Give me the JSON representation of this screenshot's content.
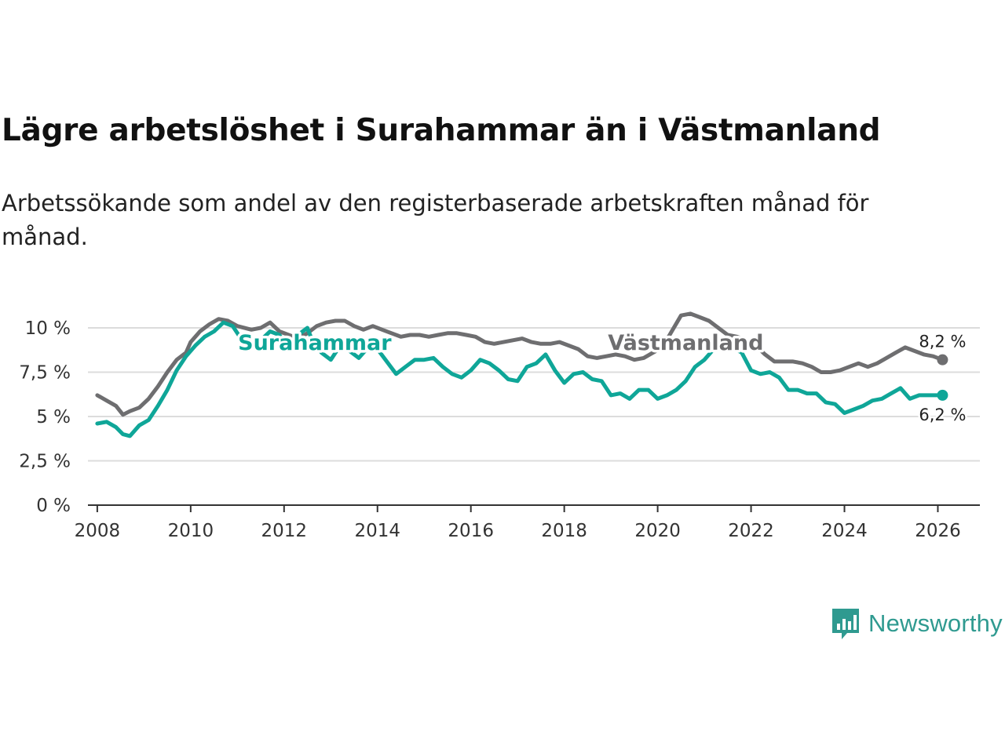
{
  "title": "Lägre arbetslöshet i Surahammar än i Västmanland",
  "subtitle": "Arbetssökande som andel av den registerbaserade arbetskraften månad för månad.",
  "brand": {
    "name": "Newsworthy",
    "icon": "newsworthy-logo-icon"
  },
  "colors": {
    "vastmanland": "#6e6e70",
    "surahammar": "#0fa698",
    "grid": "#dcdcdc",
    "axis": "#333333"
  },
  "chart_data": {
    "type": "line",
    "title": "Lägre arbetslöshet i Surahammar än i Västmanland",
    "xlabel": "",
    "ylabel": "",
    "xlim": [
      2007.8,
      2026.9
    ],
    "ylim": [
      0,
      10
    ],
    "x_ticks": [
      2008,
      2010,
      2012,
      2014,
      2016,
      2018,
      2020,
      2022,
      2024,
      2026
    ],
    "x_tick_labels": [
      "2008",
      "2010",
      "2012",
      "2014",
      "2016",
      "2018",
      "2020",
      "2022",
      "2024",
      "2026"
    ],
    "y_ticks": [
      0,
      2.5,
      5,
      7.5,
      10
    ],
    "y_tick_labels": [
      "0 %",
      "2,5 %",
      "5 %",
      "7,5 %",
      "10 %"
    ],
    "grid": true,
    "series": [
      {
        "name": "Västmanland",
        "label": "Västmanland",
        "end_label": "8,2 %",
        "color": "#6e6e70",
        "points": [
          [
            2008.0,
            6.2
          ],
          [
            2008.2,
            5.9
          ],
          [
            2008.4,
            5.6
          ],
          [
            2008.55,
            5.1
          ],
          [
            2008.7,
            5.3
          ],
          [
            2008.9,
            5.5
          ],
          [
            2009.1,
            6.0
          ],
          [
            2009.3,
            6.7
          ],
          [
            2009.5,
            7.5
          ],
          [
            2009.7,
            8.2
          ],
          [
            2009.9,
            8.6
          ],
          [
            2010.0,
            9.2
          ],
          [
            2010.2,
            9.8
          ],
          [
            2010.4,
            10.2
          ],
          [
            2010.6,
            10.5
          ],
          [
            2010.8,
            10.4
          ],
          [
            2011.0,
            10.1
          ],
          [
            2011.3,
            9.9
          ],
          [
            2011.5,
            10.0
          ],
          [
            2011.7,
            10.3
          ],
          [
            2011.9,
            9.8
          ],
          [
            2012.1,
            9.6
          ],
          [
            2012.3,
            9.4
          ],
          [
            2012.5,
            9.7
          ],
          [
            2012.7,
            10.1
          ],
          [
            2012.9,
            10.3
          ],
          [
            2013.1,
            10.4
          ],
          [
            2013.3,
            10.4
          ],
          [
            2013.5,
            10.1
          ],
          [
            2013.7,
            9.9
          ],
          [
            2013.9,
            10.1
          ],
          [
            2014.1,
            9.9
          ],
          [
            2014.3,
            9.7
          ],
          [
            2014.5,
            9.5
          ],
          [
            2014.7,
            9.6
          ],
          [
            2014.9,
            9.6
          ],
          [
            2015.1,
            9.5
          ],
          [
            2015.3,
            9.6
          ],
          [
            2015.5,
            9.7
          ],
          [
            2015.7,
            9.7
          ],
          [
            2015.9,
            9.6
          ],
          [
            2016.1,
            9.5
          ],
          [
            2016.3,
            9.2
          ],
          [
            2016.5,
            9.1
          ],
          [
            2016.7,
            9.2
          ],
          [
            2016.9,
            9.3
          ],
          [
            2017.1,
            9.4
          ],
          [
            2017.3,
            9.2
          ],
          [
            2017.5,
            9.1
          ],
          [
            2017.7,
            9.1
          ],
          [
            2017.9,
            9.2
          ],
          [
            2018.1,
            9.0
          ],
          [
            2018.3,
            8.8
          ],
          [
            2018.5,
            8.4
          ],
          [
            2018.7,
            8.3
          ],
          [
            2018.9,
            8.4
          ],
          [
            2019.1,
            8.5
          ],
          [
            2019.3,
            8.4
          ],
          [
            2019.5,
            8.2
          ],
          [
            2019.7,
            8.3
          ],
          [
            2019.9,
            8.6
          ],
          [
            2020.1,
            8.9
          ],
          [
            2020.3,
            9.8
          ],
          [
            2020.5,
            10.7
          ],
          [
            2020.7,
            10.8
          ],
          [
            2020.9,
            10.6
          ],
          [
            2021.1,
            10.4
          ],
          [
            2021.3,
            10.0
          ],
          [
            2021.5,
            9.6
          ],
          [
            2021.7,
            9.5
          ],
          [
            2021.9,
            9.3
          ],
          [
            2022.1,
            9.0
          ],
          [
            2022.3,
            8.5
          ],
          [
            2022.5,
            8.1
          ],
          [
            2022.7,
            8.1
          ],
          [
            2022.9,
            8.1
          ],
          [
            2023.1,
            8.0
          ],
          [
            2023.3,
            7.8
          ],
          [
            2023.5,
            7.5
          ],
          [
            2023.7,
            7.5
          ],
          [
            2023.9,
            7.6
          ],
          [
            2024.1,
            7.8
          ],
          [
            2024.3,
            8.0
          ],
          [
            2024.5,
            7.8
          ],
          [
            2024.7,
            8.0
          ],
          [
            2024.9,
            8.3
          ],
          [
            2025.1,
            8.6
          ],
          [
            2025.3,
            8.9
          ],
          [
            2025.5,
            8.7
          ],
          [
            2025.7,
            8.5
          ],
          [
            2025.9,
            8.4
          ],
          [
            2026.1,
            8.2
          ]
        ]
      },
      {
        "name": "Surahammar",
        "label": "Surahammar",
        "end_label": "6,2 %",
        "color": "#0fa698",
        "points": [
          [
            2008.0,
            4.6
          ],
          [
            2008.2,
            4.7
          ],
          [
            2008.4,
            4.4
          ],
          [
            2008.55,
            4.0
          ],
          [
            2008.7,
            3.9
          ],
          [
            2008.9,
            4.5
          ],
          [
            2009.1,
            4.8
          ],
          [
            2009.3,
            5.6
          ],
          [
            2009.5,
            6.5
          ],
          [
            2009.7,
            7.6
          ],
          [
            2009.9,
            8.4
          ],
          [
            2010.1,
            9.0
          ],
          [
            2010.3,
            9.5
          ],
          [
            2010.5,
            9.8
          ],
          [
            2010.7,
            10.3
          ],
          [
            2010.9,
            10.1
          ],
          [
            2011.1,
            9.3
          ],
          [
            2011.3,
            9.4
          ],
          [
            2011.5,
            9.3
          ],
          [
            2011.7,
            9.8
          ],
          [
            2011.9,
            9.6
          ],
          [
            2012.1,
            8.8
          ],
          [
            2012.3,
            9.6
          ],
          [
            2012.5,
            10.0
          ],
          [
            2012.6,
            9.3
          ],
          [
            2012.8,
            8.6
          ],
          [
            2013.0,
            8.2
          ],
          [
            2013.2,
            9.0
          ],
          [
            2013.4,
            8.7
          ],
          [
            2013.6,
            8.3
          ],
          [
            2013.8,
            8.9
          ],
          [
            2014.0,
            8.8
          ],
          [
            2014.2,
            8.1
          ],
          [
            2014.4,
            7.4
          ],
          [
            2014.6,
            7.8
          ],
          [
            2014.8,
            8.2
          ],
          [
            2015.0,
            8.2
          ],
          [
            2015.2,
            8.3
          ],
          [
            2015.4,
            7.8
          ],
          [
            2015.6,
            7.4
          ],
          [
            2015.8,
            7.2
          ],
          [
            2016.0,
            7.6
          ],
          [
            2016.2,
            8.2
          ],
          [
            2016.4,
            8.0
          ],
          [
            2016.6,
            7.6
          ],
          [
            2016.8,
            7.1
          ],
          [
            2017.0,
            7.0
          ],
          [
            2017.2,
            7.8
          ],
          [
            2017.4,
            8.0
          ],
          [
            2017.6,
            8.5
          ],
          [
            2017.8,
            7.6
          ],
          [
            2018.0,
            6.9
          ],
          [
            2018.2,
            7.4
          ],
          [
            2018.4,
            7.5
          ],
          [
            2018.6,
            7.1
          ],
          [
            2018.8,
            7.0
          ],
          [
            2019.0,
            6.2
          ],
          [
            2019.2,
            6.3
          ],
          [
            2019.4,
            6.0
          ],
          [
            2019.6,
            6.5
          ],
          [
            2019.8,
            6.5
          ],
          [
            2020.0,
            6.0
          ],
          [
            2020.2,
            6.2
          ],
          [
            2020.4,
            6.5
          ],
          [
            2020.6,
            7.0
          ],
          [
            2020.8,
            7.8
          ],
          [
            2021.0,
            8.2
          ],
          [
            2021.2,
            8.8
          ],
          [
            2021.4,
            9.2
          ],
          [
            2021.6,
            8.9
          ],
          [
            2021.8,
            8.6
          ],
          [
            2022.0,
            7.6
          ],
          [
            2022.2,
            7.4
          ],
          [
            2022.4,
            7.5
          ],
          [
            2022.6,
            7.2
          ],
          [
            2022.8,
            6.5
          ],
          [
            2023.0,
            6.5
          ],
          [
            2023.2,
            6.3
          ],
          [
            2023.4,
            6.3
          ],
          [
            2023.6,
            5.8
          ],
          [
            2023.8,
            5.7
          ],
          [
            2024.0,
            5.2
          ],
          [
            2024.2,
            5.4
          ],
          [
            2024.4,
            5.6
          ],
          [
            2024.6,
            5.9
          ],
          [
            2024.8,
            6.0
          ],
          [
            2025.0,
            6.3
          ],
          [
            2025.2,
            6.6
          ],
          [
            2025.4,
            6.0
          ],
          [
            2025.6,
            6.2
          ],
          [
            2025.8,
            6.2
          ],
          [
            2026.0,
            6.2
          ],
          [
            2026.1,
            6.2
          ]
        ]
      }
    ],
    "annotations": [
      {
        "series": "Surahammar",
        "text": "Surahammar",
        "x": 2014.3,
        "y": 9.2,
        "anchor": "end"
      },
      {
        "series": "Västmanland",
        "text": "Västmanland",
        "x": 2020.6,
        "y": 9.2,
        "anchor": "middle"
      }
    ]
  }
}
